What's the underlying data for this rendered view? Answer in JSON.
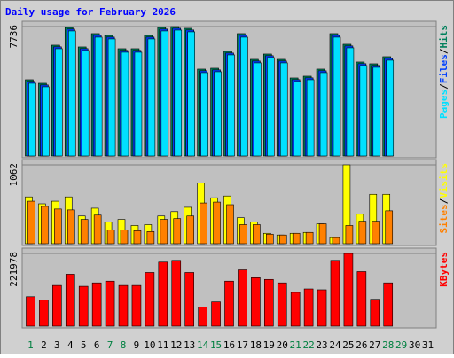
{
  "chart_data": {
    "type": "bar",
    "title": "Daily usage for February 2026",
    "legend_separator": "/",
    "categories": [
      1,
      2,
      3,
      4,
      5,
      6,
      7,
      8,
      9,
      10,
      11,
      12,
      13,
      14,
      15,
      16,
      17,
      18,
      19,
      20,
      21,
      22,
      23,
      24,
      25,
      26,
      27,
      28,
      29,
      30,
      31
    ],
    "category_colors": [
      "#008040",
      "#000000",
      "#000000",
      "#000000",
      "#000000",
      "#000000",
      "#008040",
      "#008040",
      "#000000",
      "#000000",
      "#000000",
      "#000000",
      "#000000",
      "#008040",
      "#008040",
      "#000000",
      "#000000",
      "#000000",
      "#000000",
      "#000000",
      "#008040",
      "#008040",
      "#000000",
      "#000000",
      "#000000",
      "#000000",
      "#000000",
      "#008040",
      "#008040",
      "#000000",
      "#000000"
    ],
    "panels": [
      {
        "ylim": [
          0,
          7736
        ],
        "yticks": [
          7736
        ],
        "series": [
          {
            "name": "Hits",
            "color": "#00805c",
            "values": [
              4558,
              4346,
              6625,
              7685,
              6519,
              7314,
              7208,
              6413,
              6413,
              7208,
              7685,
              7736,
              7632,
              5194,
              5247,
              6254,
              7314,
              5777,
              6095,
              5777,
              4664,
              4770,
              5194,
              7314,
              6678,
              5618,
              5512,
              5936,
              null,
              null,
              null
            ]
          },
          {
            "name": "Files",
            "color": "#0040ff",
            "values": [
              4458,
              4246,
              6525,
              7585,
              6419,
              7214,
              7108,
              6313,
              6313,
              7108,
              7585,
              7636,
              7532,
              5094,
              5147,
              6154,
              7214,
              5677,
              5995,
              5677,
              4564,
              4670,
              5094,
              7214,
              6578,
              5518,
              5412,
              5836,
              null,
              null,
              null
            ]
          },
          {
            "name": "Pages",
            "color": "#00e0ff",
            "values": [
              4348,
              4136,
              6415,
              7475,
              6309,
              7104,
              6998,
              6203,
              6203,
              6998,
              7475,
              7526,
              7422,
              4984,
              5037,
              6044,
              7104,
              5567,
              5885,
              5567,
              4454,
              4560,
              4984,
              7104,
              6468,
              5408,
              5302,
              5726,
              null,
              null,
              null
            ]
          }
        ]
      },
      {
        "ylim": [
          0,
          1062
        ],
        "yticks": [
          1062
        ],
        "series": [
          {
            "name": "Visits",
            "color": "#ffff00",
            "values": [
              630,
              537,
              572,
              630,
              373,
              478,
              292,
              327,
              245,
              257,
              373,
              432,
              490,
              817,
              618,
              642,
              350,
              292,
              140,
              117,
              140,
              152,
              268,
              82,
              1062,
              397,
              665,
              665,
              null,
              null,
              null
            ]
          },
          {
            "name": "Sites",
            "color": "#ff8000",
            "values": [
              572,
              502,
              467,
              455,
              327,
              385,
              187,
              187,
              175,
              163,
              327,
              338,
              373,
              548,
              560,
              525,
              257,
              257,
              128,
              117,
              140,
              152,
              268,
              82,
              245,
              303,
              303,
              443,
              null,
              null,
              null
            ]
          }
        ]
      },
      {
        "ylim": [
          0,
          221978
        ],
        "yticks": [
          221978
        ],
        "series": [
          {
            "name": "KBytes",
            "color": "#ff0000",
            "values": [
              89862,
              79290,
              124221,
              158580,
              121578,
              132150,
              137436,
              124221,
              124221,
              163866,
              195582,
              200868,
              163866,
              58146,
              74004,
              137436,
              171795,
              148008,
              142722,
              132150,
              103077,
              113649,
              111006,
              200868,
              221978,
              166509,
              81933,
              132150,
              null,
              null,
              null
            ]
          }
        ]
      }
    ]
  }
}
